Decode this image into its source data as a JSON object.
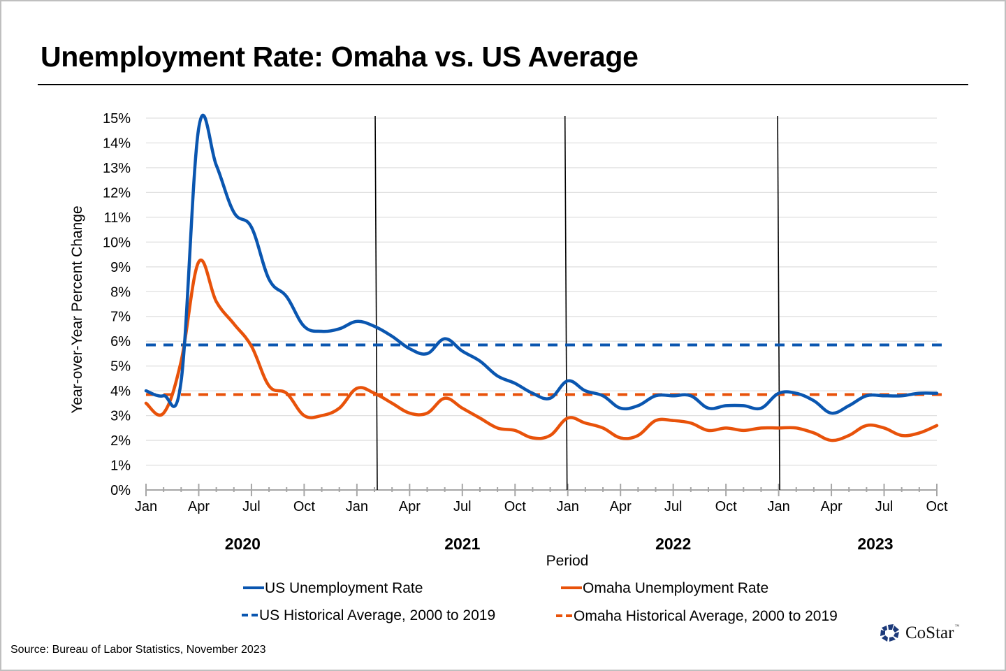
{
  "title": "Unemployment Rate: Omaha vs. US Average",
  "source": "Source: Bureau of Labor Statistics, November 2023",
  "logo": {
    "text": "CoStar",
    "tm": "™",
    "icon": "costar-star-icon"
  },
  "colors": {
    "us": "#0a56b0",
    "omaha": "#e8520a",
    "grid": "#e0e0e0",
    "axis": "#a6a6a6",
    "separator": "#000000"
  },
  "chart_data": {
    "type": "line",
    "title": "Unemployment Rate: Omaha vs. US Average",
    "xlabel": "Period",
    "ylabel": "Year-over-Year Percent Change",
    "ylim": [
      0,
      15
    ],
    "y_ticks": [
      "0%",
      "1%",
      "2%",
      "3%",
      "4%",
      "5%",
      "6%",
      "7%",
      "8%",
      "9%",
      "10%",
      "11%",
      "12%",
      "13%",
      "14%",
      "15%"
    ],
    "grid": true,
    "legend_position": "bottom",
    "x_tick_labels": [
      "Jan",
      "Apr",
      "Jul",
      "Oct",
      "Jan",
      "Apr",
      "Jul",
      "Oct",
      "Jan",
      "Apr",
      "Jul",
      "Oct",
      "Jan",
      "Apr",
      "Jul",
      "Oct"
    ],
    "year_labels": [
      {
        "label": "2020",
        "center_month": 5.5
      },
      {
        "label": "2021",
        "center_month": 18
      },
      {
        "label": "2022",
        "center_month": 30
      },
      {
        "label": "2023",
        "center_month": 41.5
      }
    ],
    "x": [
      "2020-01",
      "2020-02",
      "2020-03",
      "2020-04",
      "2020-05",
      "2020-06",
      "2020-07",
      "2020-08",
      "2020-09",
      "2020-10",
      "2020-11",
      "2020-12",
      "2021-01",
      "2021-02",
      "2021-03",
      "2021-04",
      "2021-05",
      "2021-06",
      "2021-07",
      "2021-08",
      "2021-09",
      "2021-10",
      "2021-11",
      "2021-12",
      "2022-01",
      "2022-02",
      "2022-03",
      "2022-04",
      "2022-05",
      "2022-06",
      "2022-07",
      "2022-08",
      "2022-09",
      "2022-10",
      "2022-11",
      "2022-12",
      "2023-01",
      "2023-02",
      "2023-03",
      "2023-04",
      "2023-05",
      "2023-06",
      "2023-07",
      "2023-08",
      "2023-09",
      "2023-10"
    ],
    "series": [
      {
        "name": "US Unemployment Rate",
        "style": "solid",
        "values": [
          4.0,
          3.8,
          4.4,
          14.6,
          13.1,
          11.2,
          10.6,
          8.5,
          7.8,
          6.6,
          6.4,
          6.5,
          6.8,
          6.6,
          6.2,
          5.7,
          5.5,
          6.1,
          5.6,
          5.2,
          4.6,
          4.3,
          3.9,
          3.7,
          4.4,
          4.0,
          3.8,
          3.3,
          3.4,
          3.8,
          3.8,
          3.8,
          3.3,
          3.4,
          3.4,
          3.3,
          3.9,
          3.9,
          3.6,
          3.1,
          3.4,
          3.8,
          3.8,
          3.8,
          3.9,
          3.9
        ]
      },
      {
        "name": "Omaha Unemployment Rate",
        "style": "solid",
        "values": [
          3.5,
          3.1,
          5.2,
          9.2,
          7.6,
          6.7,
          5.8,
          4.2,
          3.9,
          3.0,
          3.0,
          3.3,
          4.1,
          3.9,
          3.5,
          3.1,
          3.1,
          3.7,
          3.3,
          2.9,
          2.5,
          2.4,
          2.1,
          2.2,
          2.9,
          2.7,
          2.5,
          2.1,
          2.2,
          2.8,
          2.8,
          2.7,
          2.4,
          2.5,
          2.4,
          2.5,
          2.5,
          2.5,
          2.3,
          2.0,
          2.2,
          2.6,
          2.5,
          2.2,
          2.3,
          2.6
        ]
      },
      {
        "name": "US Historical Average, 2000 to 2019",
        "style": "dashed",
        "constant": 5.85
      },
      {
        "name": "Omaha Historical Average, 2000 to 2019",
        "style": "dashed",
        "constant": 3.85
      }
    ],
    "separators_month_index": [
      13.1,
      23.9,
      36
    ]
  }
}
